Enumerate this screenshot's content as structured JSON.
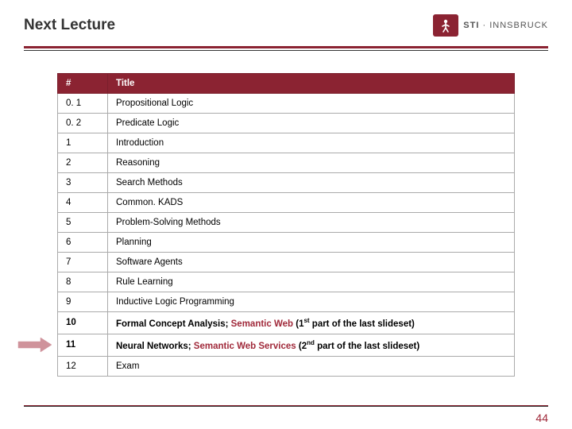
{
  "header": {
    "title": "Next Lecture",
    "logo_sti": "STI",
    "logo_sep": " · ",
    "logo_city": "INNSBRUCK"
  },
  "table": {
    "columns": [
      "#",
      "Title"
    ],
    "rows": [
      {
        "num": "0. 1",
        "title": "Propositional Logic",
        "highlight": false
      },
      {
        "num": "0. 2",
        "title": "Predicate Logic",
        "highlight": false
      },
      {
        "num": "1",
        "title": "Introduction",
        "highlight": false
      },
      {
        "num": "2",
        "title": "Reasoning",
        "highlight": false
      },
      {
        "num": "3",
        "title": "Search Methods",
        "highlight": false
      },
      {
        "num": "4",
        "title": "Common. KADS",
        "highlight": false
      },
      {
        "num": "5",
        "title": "Problem-Solving Methods",
        "highlight": false
      },
      {
        "num": "6",
        "title": "Planning",
        "highlight": false
      },
      {
        "num": "7",
        "title": "Software Agents",
        "highlight": false
      },
      {
        "num": "8",
        "title": "Rule Learning",
        "highlight": false
      },
      {
        "num": "9",
        "title": "Inductive Logic Programming",
        "highlight": false
      },
      {
        "num": "10",
        "title_pre": "Formal Concept Analysis; ",
        "title_accent": "Semantic Web",
        "title_post": " (1",
        "title_sup": "st",
        "title_tail": " part of the last slideset)",
        "highlight": true
      },
      {
        "num": "11",
        "title_pre": "Neural Networks; ",
        "title_accent": "Semantic Web Services",
        "title_post": " (2",
        "title_sup": "nd",
        "title_tail": " part of the last slideset)",
        "highlight": true,
        "arrow": true
      },
      {
        "num": "12",
        "title": "Exam",
        "highlight": false
      }
    ]
  },
  "colors": {
    "brand": "#8b2332",
    "accent": "#a0293a",
    "text": "#333333",
    "border": "#aaaaaa",
    "bg": "#ffffff"
  },
  "page_number": "44"
}
